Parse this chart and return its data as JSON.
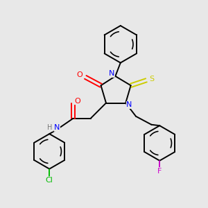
{
  "bg_color": "#e8e8e8",
  "line_color": "#000000",
  "atom_colors": {
    "N": "#0000ff",
    "O": "#ff0000",
    "S": "#cccc00",
    "Cl": "#00bb00",
    "F": "#cc00cc",
    "H": "#777777",
    "C": "#000000"
  },
  "lw": 1.4
}
